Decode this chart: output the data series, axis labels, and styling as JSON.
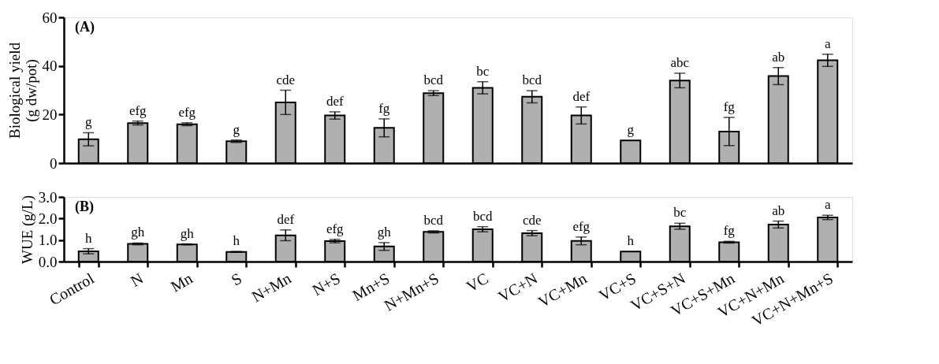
{
  "chart_data": [
    {
      "type": "bar",
      "ylabel": "Biological yield\n(g dw/pot)",
      "tick_labels": "y",
      "grid": false,
      "categories": [
        null,
        null,
        null,
        null,
        null,
        null,
        null,
        null,
        null,
        null,
        null,
        null,
        null,
        null,
        null,
        null
      ],
      "values": [
        9.8,
        16.5,
        16,
        9,
        25,
        19.6,
        14.5,
        28.8,
        31,
        27.3,
        19.6,
        9.3,
        34,
        13,
        35.8,
        42.3
      ],
      "errors": [
        2.7,
        0.8,
        0.6,
        0.5,
        5,
        1.5,
        3.7,
        1,
        2.5,
        2.5,
        3.5,
        null,
        3,
        5.8,
        3.5,
        2.5
      ],
      "value_labels": [
        "g",
        "efg",
        "efg",
        "g",
        "cde",
        "def",
        "fg",
        "bcd",
        "bc",
        "bcd",
        "def",
        "g",
        "abc",
        "fg",
        "ab",
        "a"
      ],
      "color": "#b0b0b0",
      "ylim": [
        0,
        60
      ],
      "yticks": [
        0,
        20,
        40,
        60
      ],
      "annotations": [
        "(A)"
      ]
    },
    {
      "type": "bar",
      "ylabel": "WUE (g/L)",
      "grid": false,
      "categories": [
        "Control",
        "N",
        "Mn",
        "S",
        "N+Mn",
        "N+S",
        "Mn+S",
        "N+Mn+S",
        "VC",
        "VC+N",
        "VC+Mn",
        "VC+S",
        "VC+S+N",
        "VC+S+Mn",
        "VC+N+Mn",
        "VC+N+Mn+S"
      ],
      "values": [
        0.48,
        0.82,
        0.8,
        0.45,
        1.22,
        0.95,
        0.7,
        1.38,
        1.5,
        1.32,
        0.96,
        0.47,
        1.64,
        0.9,
        1.72,
        2.05
      ],
      "errors": [
        0.12,
        0.04,
        0.02,
        0.02,
        0.25,
        0.08,
        0.18,
        0.05,
        0.12,
        0.12,
        0.18,
        null,
        0.14,
        0.04,
        0.16,
        0.1
      ],
      "value_labels": [
        "h",
        "gh",
        "gh",
        "h",
        "def",
        "efg",
        "gh",
        "bcd",
        "bcd",
        "cde",
        "efg",
        "h",
        "bc",
        "fg",
        "ab",
        "a"
      ],
      "color": "#b0b0b0",
      "ylim": [
        0,
        3
      ],
      "yticks": [
        {
          "value": 0,
          "label": "0.0"
        },
        {
          "value": 1,
          "label": "1.0"
        },
        {
          "value": 2,
          "label": "2.0"
        },
        {
          "value": 3,
          "label": "3.0"
        }
      ],
      "annotations": [
        "(B)"
      ]
    }
  ]
}
